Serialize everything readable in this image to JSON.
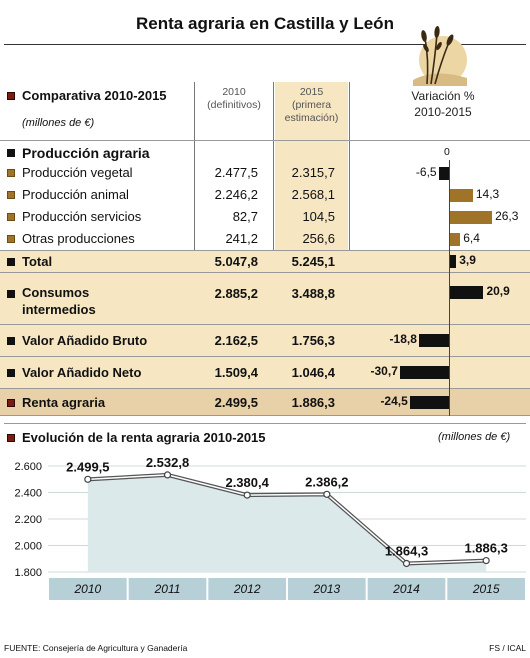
{
  "title": "Renta agraria en Castilla y León",
  "table": {
    "section_title": "Comparativa 2010-2015",
    "units": "(millones de €)",
    "col_2010": [
      "2010",
      "(definitivos)"
    ],
    "col_2015": [
      "2015",
      "(primera",
      "estimación)"
    ],
    "col_var": [
      "Variación %",
      "2010-2015"
    ],
    "zero_label": "0",
    "group_heading": "Producción agraria",
    "rows": [
      {
        "label": "Producción vegetal",
        "v2010": "2.477,5",
        "v2015": "2.315,7",
        "var": -6.5,
        "var_label": "-6,5"
      },
      {
        "label": "Producción animal",
        "v2010": "2.246,2",
        "v2015": "2.568,1",
        "var": 14.3,
        "var_label": "14,3"
      },
      {
        "label": "Producción servicios",
        "v2010": "82,7",
        "v2015": "104,5",
        "var": 26.3,
        "var_label": "26,3"
      },
      {
        "label": "Otras producciones",
        "v2010": "241,2",
        "v2015": "256,6",
        "var": 6.4,
        "var_label": "6,4"
      },
      {
        "label": "Total",
        "v2010": "5.047,8",
        "v2015": "5.245,1",
        "var": 3.9,
        "var_label": "3,9"
      },
      {
        "label": "Consumos intermedios",
        "label_line1": "Consumos",
        "label_line2": "intermedios",
        "v2010": "2.885,2",
        "v2015": "3.488,8",
        "var": 20.9,
        "var_label": "20,9"
      },
      {
        "label": "Valor Añadido Bruto",
        "v2010": "2.162,5",
        "v2015": "1.756,3",
        "var": -18.8,
        "var_label": "-18,8"
      },
      {
        "label": "Valor Añadido Neto",
        "v2010": "1.509,4",
        "v2015": "1.046,4",
        "var": -30.7,
        "var_label": "-30,7"
      },
      {
        "label": "Renta agraria",
        "v2010": "2.499,5",
        "v2015": "1.886,3",
        "var": -24.5,
        "var_label": "-24,5"
      }
    ]
  },
  "evolution": {
    "title": "Evolución de la renta agraria 2010-2015",
    "units": "(millones de €)"
  },
  "chart_data": {
    "type": "area",
    "title": "Evolución de la renta agraria 2010-2015",
    "units": "(millones de €)",
    "x": [
      "2010",
      "2011",
      "2012",
      "2013",
      "2014",
      "2015"
    ],
    "values": [
      2499.5,
      2532.8,
      2380.4,
      2386.2,
      1864.3,
      1886.3
    ],
    "value_labels": [
      "2.499,5",
      "2.532,8",
      "2.380,4",
      "2.386,2",
      "1.864,3",
      "1.886,3"
    ],
    "yticks": [
      "1.800",
      "2.000",
      "2.200",
      "2.400",
      "2.600"
    ],
    "ylim": [
      1800,
      2600
    ],
    "grid": true,
    "colors": {
      "area": "#dbe9ea",
      "line": "#555555",
      "axis_band": "#b7cfd6"
    }
  },
  "source": "FUENTE: Consejería de Agricultura y Ganadería",
  "credit": "FS / ICAL",
  "colors": {
    "highlight": "#f6e6c2",
    "positive_bar": "#a07428",
    "dark_bar": "#111111",
    "marker": "#7a1c12"
  }
}
